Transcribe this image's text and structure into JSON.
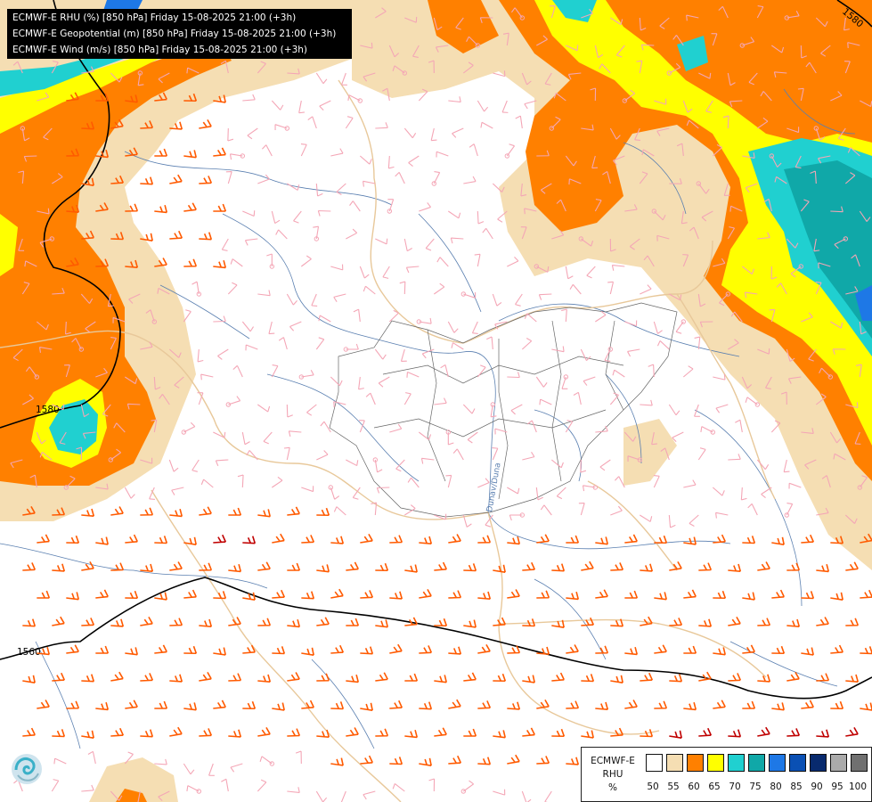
{
  "header": {
    "lines": [
      "ECMWF-E RHU (%) [850 hPa] Friday 15-08-2025 21:00 (+3h)",
      "ECMWF-E Geopotential (m) [850 hPa] Friday 15-08-2025 21:00 (+3h)",
      "ECMWF-E Wind (m/s) [850 hPa] Friday 15-08-2025 21:00 (+3h)"
    ]
  },
  "contours": {
    "labels": [
      "1580",
      "1580",
      "1560"
    ]
  },
  "map_labels": {
    "river": "Dunav/Duna"
  },
  "legend": {
    "title_line1": "ECMWF-E",
    "title_line2": "RHU",
    "unit": "%",
    "ticks": [
      "50",
      "55",
      "60",
      "65",
      "70",
      "75",
      "80",
      "85",
      "90",
      "95",
      "100"
    ],
    "colors": [
      "#ffffff",
      "#f5deb3",
      "#ff8000",
      "#ffff00",
      "#20d0d0",
      "#10a8a8",
      "#1e78e6",
      "#0a50b4",
      "#082a6e",
      "#aaaaaa",
      "#707070"
    ]
  },
  "colors": {
    "rh_55": "#f5deb3",
    "rh_60": "#ff8000",
    "rh_65": "#ffff00",
    "rh_70": "#20d0d0",
    "rh_75": "#10a8a8",
    "rh_80": "#1e78e6",
    "rh_85": "#0a50b4",
    "wind_light": "#f4a6b6",
    "wind_strong": "#ff5a00",
    "wind_strongest": "#c00000",
    "rivers": "#5a7fb0",
    "borders": "#e8c89a"
  }
}
